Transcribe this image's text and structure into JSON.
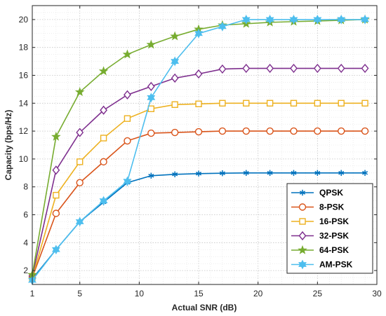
{
  "chart_data": {
    "type": "line",
    "xlabel": "Actual SNR (dB)",
    "ylabel": "Capacity (bps/Hz)",
    "xlim": [
      1,
      30
    ],
    "ylim": [
      1,
      21
    ],
    "xticks": [
      1,
      5,
      10,
      15,
      20,
      25,
      30
    ],
    "yticks": [
      2,
      4,
      6,
      8,
      10,
      12,
      14,
      16,
      18,
      20
    ],
    "grid": "major and minor, dotted",
    "legend_position": "bottom-right",
    "x": [
      1,
      3,
      5,
      7,
      9,
      11,
      13,
      15,
      17,
      19,
      21,
      23,
      25,
      27,
      29
    ],
    "series": [
      {
        "name": "QPSK",
        "color": "#0072BD",
        "marker": "asterisk",
        "values": [
          1.4,
          3.5,
          5.5,
          6.9,
          8.3,
          8.8,
          8.9,
          8.95,
          8.98,
          9.0,
          9.0,
          9.0,
          9.0,
          9.0,
          9.0
        ]
      },
      {
        "name": "8-PSK",
        "color": "#D95319",
        "marker": "circle",
        "values": [
          1.5,
          6.1,
          8.3,
          9.8,
          11.3,
          11.85,
          11.9,
          11.95,
          12.0,
          12.0,
          12.0,
          12.0,
          12.0,
          12.0,
          12.0
        ]
      },
      {
        "name": "16-PSK",
        "color": "#EDB120",
        "marker": "square",
        "values": [
          1.5,
          7.4,
          9.8,
          11.5,
          12.9,
          13.6,
          13.9,
          13.95,
          14.0,
          14.0,
          14.0,
          14.0,
          14.0,
          14.0,
          14.0
        ]
      },
      {
        "name": "32-PSK",
        "color": "#7E2F8E",
        "marker": "diamond",
        "values": [
          1.6,
          9.2,
          11.9,
          13.5,
          14.6,
          15.2,
          15.8,
          16.1,
          16.45,
          16.5,
          16.5,
          16.5,
          16.5,
          16.5,
          16.5
        ]
      },
      {
        "name": "64-PSK",
        "color": "#77AC30",
        "marker": "pentagram",
        "values": [
          1.7,
          11.6,
          14.8,
          16.3,
          17.5,
          18.2,
          18.8,
          19.3,
          19.6,
          19.7,
          19.8,
          19.85,
          19.9,
          19.95,
          20.0
        ]
      },
      {
        "name": "AM-PSK",
        "color": "#4DBEEE",
        "marker": "hexagram",
        "values": [
          1.3,
          3.5,
          5.5,
          7.0,
          8.4,
          14.4,
          17.0,
          19.0,
          19.5,
          20.0,
          20.0,
          20.0,
          20.0,
          20.0,
          20.0
        ]
      }
    ]
  }
}
